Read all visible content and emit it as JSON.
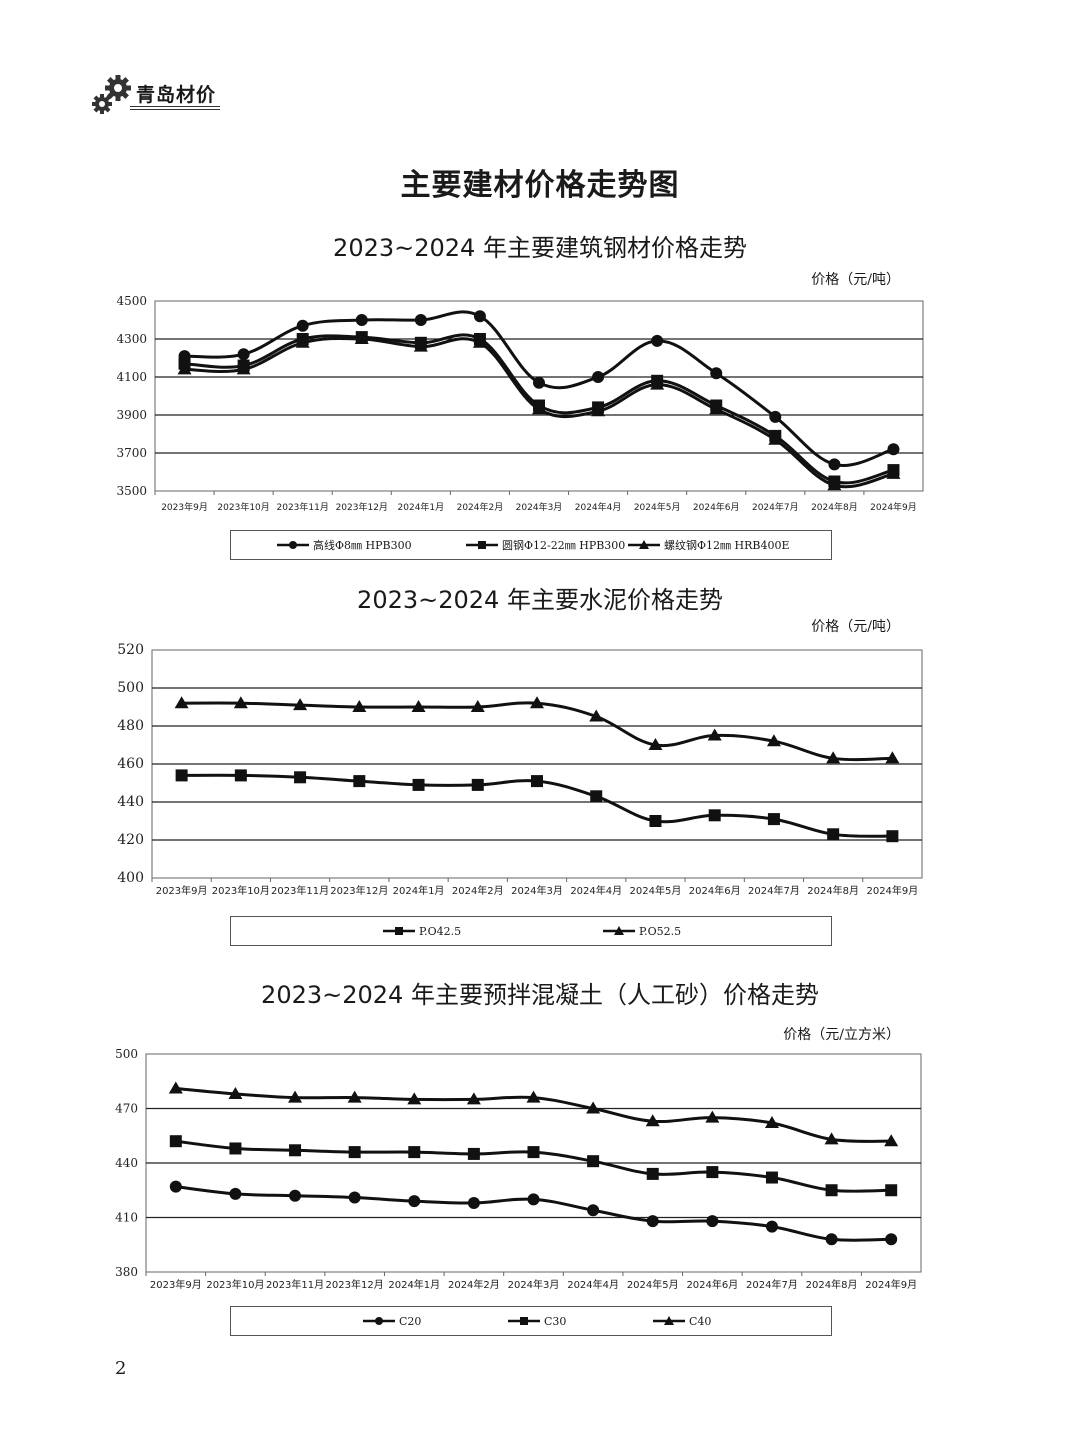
{
  "header": {
    "logo_text": "青岛材价"
  },
  "page": {
    "title": "主要建材价格走势图",
    "number": "2"
  },
  "chart_data": [
    {
      "type": "line",
      "title": "2023~2024 年主要建筑钢材价格走势",
      "unit": "价格（元/吨）",
      "categories": [
        "2023年9月",
        "2023年10月",
        "2023年11月",
        "2023年12月",
        "2024年1月",
        "2024年2月",
        "2024年3月",
        "2024年4月",
        "2024年5月",
        "2024年6月",
        "2024年7月",
        "2024年8月",
        "2024年9月"
      ],
      "ylim": [
        3500,
        4500
      ],
      "yticks": [
        3500,
        3700,
        3900,
        4100,
        4300,
        4500
      ],
      "grid": true,
      "legend_position": "bottom",
      "series": [
        {
          "name": "高线Φ8㎜ HPB300",
          "marker": "circle",
          "values": [
            4210,
            4220,
            4370,
            4400,
            4400,
            4420,
            4070,
            4100,
            4290,
            4120,
            3890,
            3640,
            3720
          ]
        },
        {
          "name": "圆钢Φ12-22㎜ HPB300",
          "marker": "square",
          "values": [
            4170,
            4160,
            4300,
            4310,
            4280,
            4300,
            3950,
            3940,
            4080,
            3950,
            3790,
            3550,
            3610
          ]
        },
        {
          "name": "螺纹钢Φ12㎜ HRB400E",
          "marker": "triangle",
          "values": [
            4140,
            4140,
            4280,
            4300,
            4260,
            4280,
            3930,
            3920,
            4060,
            3930,
            3770,
            3530,
            3590
          ]
        }
      ]
    },
    {
      "type": "line",
      "title": "2023~2024 年主要水泥价格走势",
      "unit": "价格（元/吨）",
      "categories": [
        "2023年9月",
        "2023年10月",
        "2023年11月",
        "2023年12月",
        "2024年1月",
        "2024年2月",
        "2024年3月",
        "2024年4月",
        "2024年5月",
        "2024年6月",
        "2024年7月",
        "2024年8月",
        "2024年9月"
      ],
      "ylim": [
        400,
        520
      ],
      "yticks": [
        400,
        420,
        440,
        460,
        480,
        500,
        520
      ],
      "grid": true,
      "legend_position": "bottom",
      "series": [
        {
          "name": "P.O42.5",
          "marker": "square",
          "values": [
            454,
            454,
            453,
            451,
            449,
            449,
            451,
            443,
            430,
            433,
            431,
            423,
            422
          ]
        },
        {
          "name": "P.O52.5",
          "marker": "triangle",
          "values": [
            492,
            492,
            491,
            490,
            490,
            490,
            492,
            485,
            470,
            475,
            472,
            463,
            463
          ]
        }
      ]
    },
    {
      "type": "line",
      "title": "2023~2024 年主要预拌混凝土（人工砂）价格走势",
      "unit": "价格（元/立方米）",
      "categories": [
        "2023年9月",
        "2023年10月",
        "2023年11月",
        "2023年12月",
        "2024年1月",
        "2024年2月",
        "2024年3月",
        "2024年4月",
        "2024年5月",
        "2024年6月",
        "2024年7月",
        "2024年8月",
        "2024年9月"
      ],
      "ylim": [
        380,
        500
      ],
      "yticks": [
        380,
        410,
        440,
        470,
        500
      ],
      "grid": true,
      "legend_position": "bottom",
      "series": [
        {
          "name": "C20",
          "marker": "circle",
          "values": [
            427,
            423,
            422,
            421,
            419,
            418,
            420,
            414,
            408,
            408,
            405,
            398,
            398
          ]
        },
        {
          "name": "C30",
          "marker": "square",
          "values": [
            452,
            448,
            447,
            446,
            446,
            445,
            446,
            441,
            434,
            435,
            432,
            425,
            425
          ]
        },
        {
          "name": "C40",
          "marker": "triangle",
          "values": [
            481,
            478,
            476,
            476,
            475,
            475,
            476,
            470,
            463,
            465,
            462,
            453,
            452
          ]
        }
      ]
    }
  ]
}
